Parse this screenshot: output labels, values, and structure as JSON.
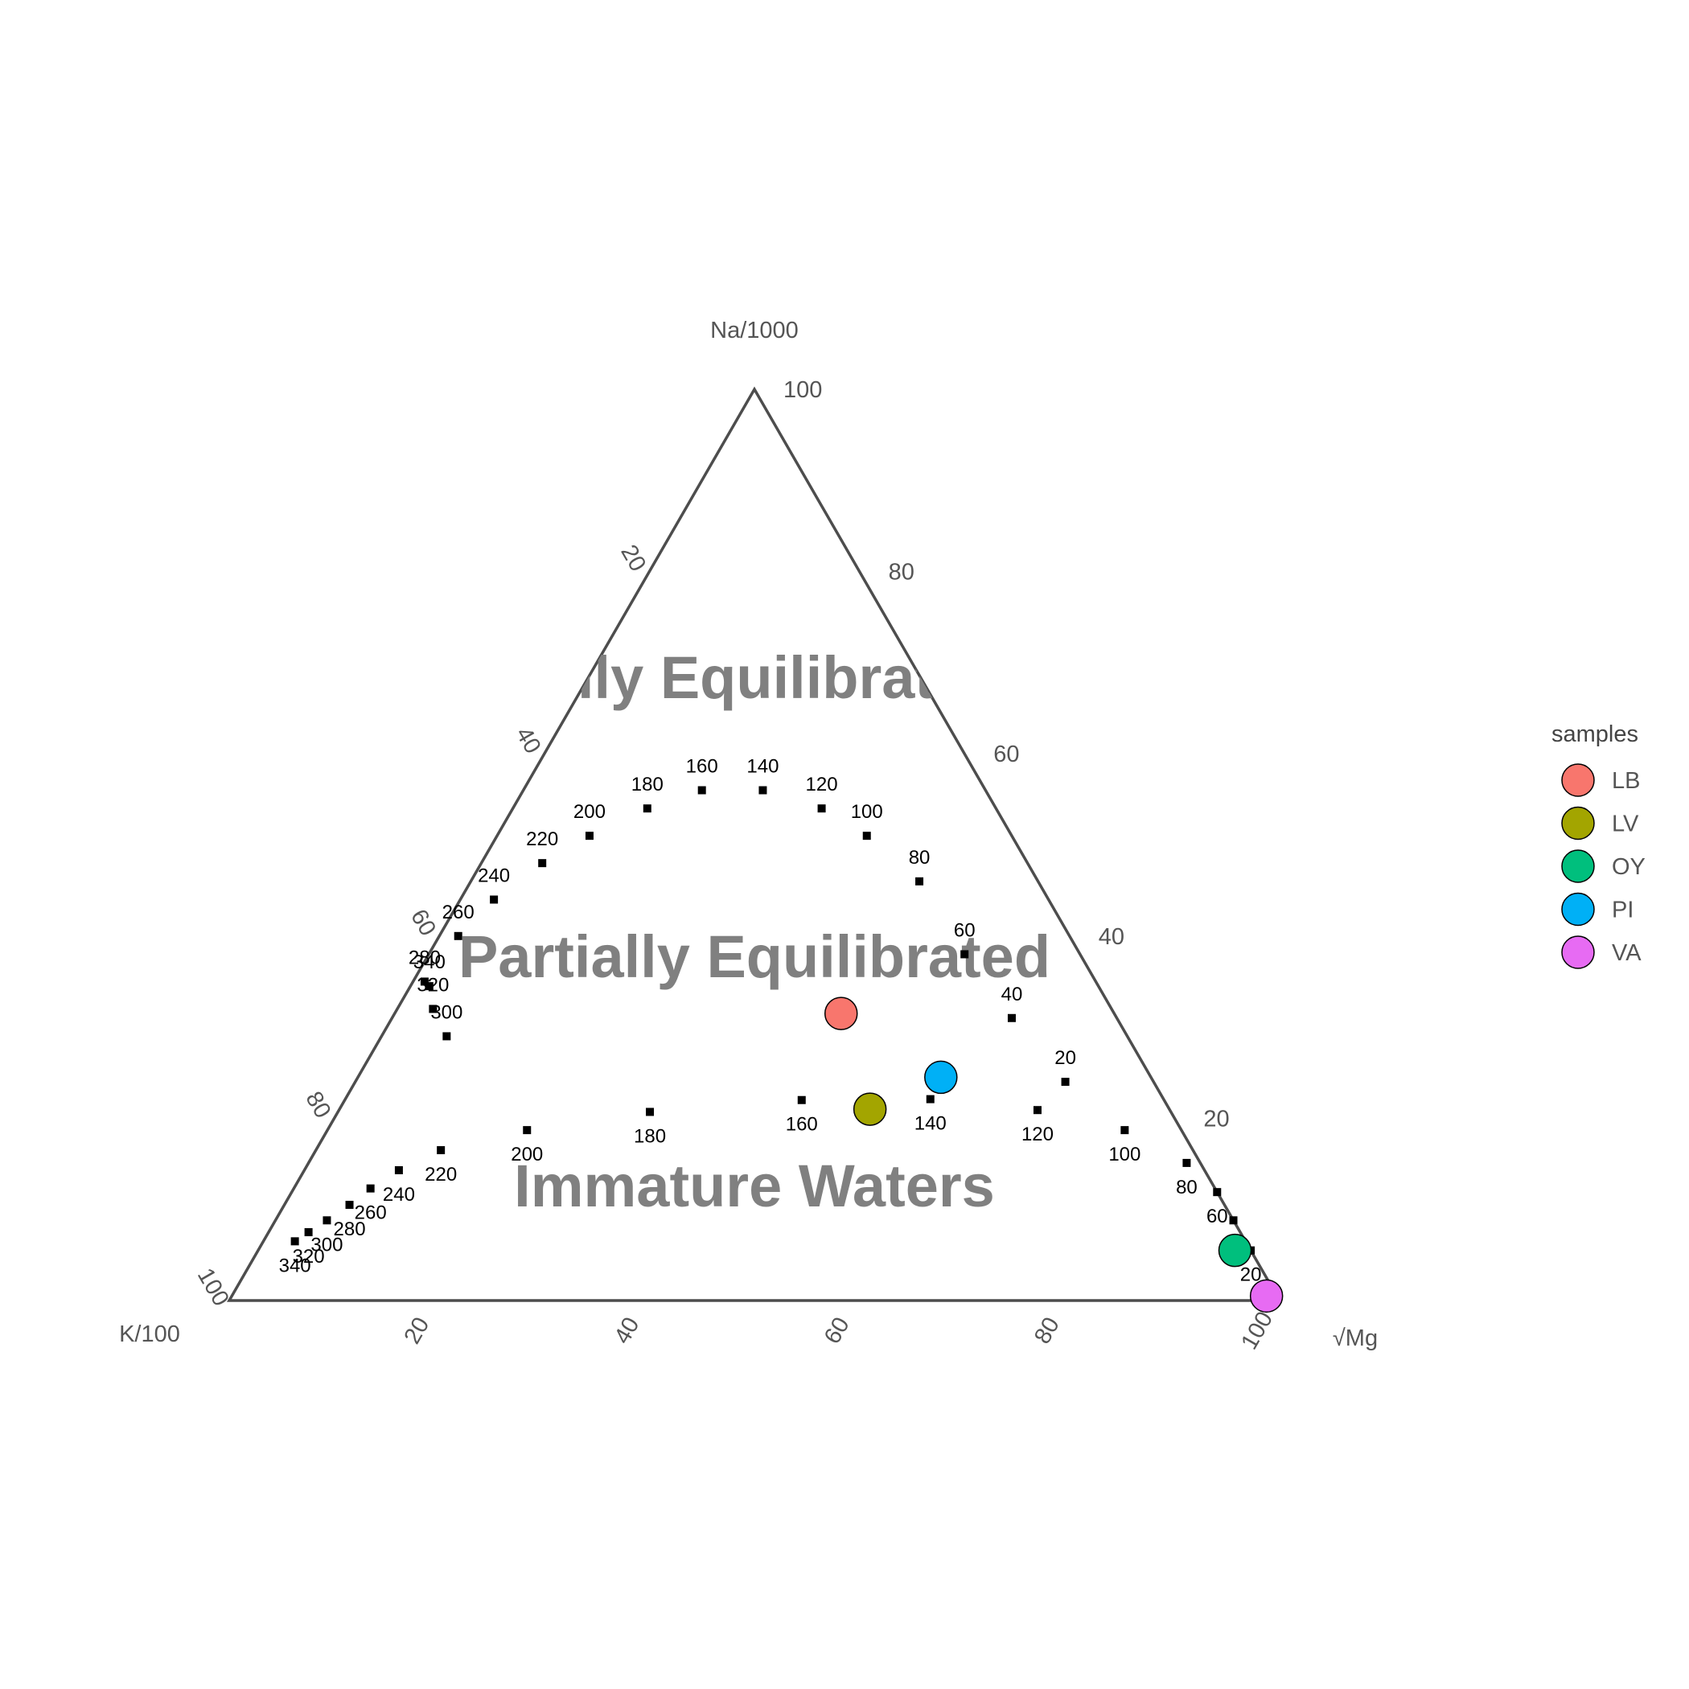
{
  "chart_data": {
    "type": "scatter",
    "subtype": "ternary (Giggenbach Na-K-Mg diagram)",
    "axes": {
      "top": "Na/1000",
      "left": "K/100",
      "right": "√Mg"
    },
    "scale": [
      0,
      100
    ],
    "ticks": [
      20,
      40,
      60,
      80,
      100
    ],
    "regions": [
      {
        "label": "Fully Equilibrated"
      },
      {
        "label": "Partially Equilibrated"
      },
      {
        "label": "Immature Waters"
      }
    ],
    "full_equilibrium_line": [
      {
        "label": "340",
        "a": 34.5,
        "b": 63.7,
        "c": 1.8
      },
      {
        "label": "320",
        "a": 32.0,
        "b": 64.6,
        "c": 3.4
      },
      {
        "label": "300",
        "a": 29.0,
        "b": 64.8,
        "c": 6.2
      },
      {
        "label": "280",
        "a": 35.0,
        "b": 63.9,
        "c": 1.1
      },
      {
        "label": "260",
        "a": 40.0,
        "b": 58.2,
        "c": 1.8
      },
      {
        "label": "240",
        "a": 44.0,
        "b": 52.8,
        "c": 3.2
      },
      {
        "label": "220",
        "a": 48.0,
        "b": 46.2,
        "c": 5.8
      },
      {
        "label": "200",
        "a": 51.0,
        "b": 40.2,
        "c": 8.8
      },
      {
        "label": "180",
        "a": 54.0,
        "b": 33.2,
        "c": 12.8
      },
      {
        "label": "160",
        "a": 56.0,
        "b": 27.0,
        "c": 17.0
      },
      {
        "label": "140",
        "a": 56.0,
        "b": 21.2,
        "c": 22.8
      },
      {
        "label": "120",
        "a": 54.0,
        "b": 16.6,
        "c": 29.4
      },
      {
        "label": "100",
        "a": 51.0,
        "b": 13.8,
        "c": 35.2
      },
      {
        "label": "80",
        "a": 46.0,
        "b": 11.3,
        "c": 42.7
      },
      {
        "label": "60",
        "a": 38.0,
        "b": 11.0,
        "c": 51.0
      },
      {
        "label": "40",
        "a": 31.0,
        "b": 10.0,
        "c": 59.0
      },
      {
        "label": "20",
        "a": 24.0,
        "b": 8.4,
        "c": 67.6
      }
    ],
    "partial_equilibrium_line": [
      {
        "label": "340",
        "a": 6.5,
        "b": 90.5,
        "c": 3.0
      },
      {
        "label": "320",
        "a": 7.5,
        "b": 88.7,
        "c": 3.8
      },
      {
        "label": "300",
        "a": 8.8,
        "b": 86.3,
        "c": 4.9
      },
      {
        "label": "280",
        "a": 10.5,
        "b": 83.3,
        "c": 6.2
      },
      {
        "label": "260",
        "a": 12.3,
        "b": 80.4,
        "c": 7.3
      },
      {
        "label": "240",
        "a": 14.3,
        "b": 76.7,
        "c": 9.0
      },
      {
        "label": "220",
        "a": 16.5,
        "b": 71.6,
        "c": 11.9
      },
      {
        "label": "200",
        "a": 18.7,
        "b": 62.3,
        "c": 19.0
      },
      {
        "label": "180",
        "a": 20.7,
        "b": 49.6,
        "c": 29.7
      },
      {
        "label": "160",
        "a": 22.0,
        "b": 34.5,
        "c": 43.5
      },
      {
        "label": "140",
        "a": 22.1,
        "b": 22.2,
        "c": 55.7
      },
      {
        "label": "120",
        "a": 20.9,
        "b": 12.6,
        "c": 66.5
      },
      {
        "label": "100",
        "a": 18.7,
        "b": 5.4,
        "c": 75.9
      },
      {
        "label": "80",
        "a": 15.1,
        "b": 1.3,
        "c": 83.6
      },
      {
        "label": "60",
        "a": 11.9,
        "b": 0.0,
        "c": 88.1
      },
      {
        "label": "40",
        "a": 8.8,
        "b": 0.0,
        "c": 91.2
      },
      {
        "label": "20",
        "a": 5.5,
        "b": 0.0,
        "c": 94.5
      }
    ],
    "series": [
      {
        "name": "LB",
        "color": "#F8766D",
        "a": 31.5,
        "b": 26.0,
        "c": 42.5
      },
      {
        "name": "LV",
        "color": "#A3A500",
        "a": 21.0,
        "b": 28.5,
        "c": 50.5
      },
      {
        "name": "OY",
        "color": "#00BF7D",
        "a": 5.5,
        "b": 1.5,
        "c": 93.0
      },
      {
        "name": "PI",
        "color": "#00B0F6",
        "a": 24.5,
        "b": 20.0,
        "c": 55.5
      },
      {
        "name": "VA",
        "color": "#E76BF3",
        "a": 0.5,
        "b": 1.0,
        "c": 98.5
      }
    ],
    "legend": {
      "title": "samples",
      "position": "right"
    }
  }
}
